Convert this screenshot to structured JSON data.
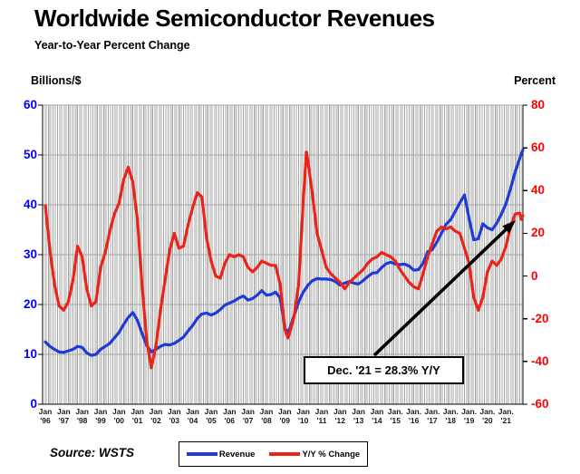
{
  "header": {
    "title": "Worldwide Semiconductor Revenues",
    "subtitle": "Year-to-Year Percent Change"
  },
  "axes": {
    "left_title": "Billions/$",
    "right_title": "Percent",
    "left_tick_labels": [
      "60",
      "50",
      "40",
      "30",
      "20",
      "10",
      "0"
    ],
    "left_tick_values": [
      60,
      50,
      40,
      30,
      20,
      10,
      0
    ],
    "right_tick_labels": [
      "80",
      "60",
      "40",
      "20",
      "0",
      "-20",
      "-40",
      "-60"
    ],
    "right_tick_values": [
      80,
      60,
      40,
      20,
      0,
      -20,
      -40,
      -60
    ],
    "x_labels": [
      {
        "line1": "Jan",
        "line2": "'96"
      },
      {
        "line1": "Jan",
        "line2": "'97"
      },
      {
        "line1": "Jan",
        "line2": "'98"
      },
      {
        "line1": "Jan",
        "line2": "'99"
      },
      {
        "line1": "Jan",
        "line2": "'00"
      },
      {
        "line1": "Jan",
        "line2": "'01"
      },
      {
        "line1": "Jan",
        "line2": "'02"
      },
      {
        "line1": "Jan",
        "line2": "'03"
      },
      {
        "line1": "Jan",
        "line2": "'04"
      },
      {
        "line1": "Jan",
        "line2": "'05"
      },
      {
        "line1": "Jan",
        "line2": "'06"
      },
      {
        "line1": "Jan",
        "line2": "'07"
      },
      {
        "line1": "Jan",
        "line2": "'08"
      },
      {
        "line1": "Jan",
        "line2": "'09"
      },
      {
        "line1": "Jan",
        "line2": "'10"
      },
      {
        "line1": "Jan",
        "line2": "'11"
      },
      {
        "line1": "Jan",
        "line2": "'12"
      },
      {
        "line1": "Jan",
        "line2": "'13"
      },
      {
        "line1": "Jan",
        "line2": "'14"
      },
      {
        "line1": "Jan.",
        "line2": "'15"
      },
      {
        "line1": "Jan.",
        "line2": "'16"
      },
      {
        "line1": "Jan.",
        "line2": "'17"
      },
      {
        "line1": "Jan.",
        "line2": "'18"
      },
      {
        "line1": "Jan.",
        "line2": "'19"
      },
      {
        "line1": "Jan.",
        "line2": "'20"
      },
      {
        "line1": "Jan.",
        "line2": "'21"
      }
    ]
  },
  "legend": {
    "items": [
      {
        "label": "Revenue",
        "color": "#1f3ad6"
      },
      {
        "label": "Y/Y % Change",
        "color": "#ea2418"
      }
    ],
    "position": "bottom-center"
  },
  "annotation": {
    "text": "Dec. '21 = 28.3% Y/Y"
  },
  "source": {
    "text": "Source: WSTS"
  },
  "colors": {
    "revenue_line": "#1f3ad6",
    "yoy_line": "#ea2418",
    "left_axis_label": "#0000ff",
    "right_axis_label": "#ff0000",
    "gridline": "#a6a6a6",
    "spine": "#000000",
    "title_text": "#000000",
    "x_label_text": "#1a1a1a"
  },
  "chart_data": {
    "type": "line",
    "title": "Worldwide Semiconductor Revenues",
    "subtitle": "Year-to-Year Percent Change",
    "source": "Source: WSTS",
    "annotation": {
      "text": "Dec. '21 = 28.3% Y/Y",
      "points_to": "final value of Y/Y % Change line (Dec 2021)"
    },
    "left_axis": {
      "title": "Billions/$",
      "range": [
        0,
        60
      ],
      "gridline_step": 10,
      "units": "US$ billions per month (3-month average)"
    },
    "right_axis": {
      "title": "Percent",
      "range": [
        -60,
        80
      ],
      "tick_step": 20,
      "units": "year-to-year percent change"
    },
    "x_axis": {
      "range": [
        1996.0,
        2021.917
      ],
      "tick_labels": "Jan of each year 1996-2021",
      "minor_gridlines": "monthly"
    },
    "legend_position": "bottom-center",
    "x": [
      1996.0,
      1996.25,
      1996.5,
      1996.75,
      1997.0,
      1997.25,
      1997.5,
      1997.75,
      1998.0,
      1998.25,
      1998.5,
      1998.75,
      1999.0,
      1999.25,
      1999.5,
      1999.75,
      2000.0,
      2000.25,
      2000.5,
      2000.75,
      2001.0,
      2001.25,
      2001.5,
      2001.75,
      2002.0,
      2002.25,
      2002.5,
      2002.75,
      2003.0,
      2003.25,
      2003.5,
      2003.75,
      2004.0,
      2004.25,
      2004.5,
      2004.75,
      2005.0,
      2005.25,
      2005.5,
      2005.75,
      2006.0,
      2006.25,
      2006.5,
      2006.75,
      2007.0,
      2007.25,
      2007.5,
      2007.75,
      2008.0,
      2008.25,
      2008.5,
      2008.75,
      2008.92,
      2009.0,
      2009.17,
      2009.25,
      2009.5,
      2009.75,
      2010.0,
      2010.17,
      2010.25,
      2010.5,
      2010.75,
      2011.0,
      2011.25,
      2011.5,
      2011.75,
      2012.0,
      2012.25,
      2012.5,
      2012.75,
      2013.0,
      2013.25,
      2013.5,
      2013.75,
      2014.0,
      2014.25,
      2014.5,
      2014.75,
      2015.0,
      2015.25,
      2015.5,
      2015.75,
      2016.0,
      2016.25,
      2016.5,
      2016.75,
      2017.0,
      2017.25,
      2017.5,
      2017.75,
      2018.0,
      2018.25,
      2018.5,
      2018.75,
      2019.0,
      2019.25,
      2019.5,
      2019.75,
      2020.0,
      2020.25,
      2020.5,
      2020.75,
      2021.0,
      2021.25,
      2021.5,
      2021.75,
      2021.83,
      2021.92
    ],
    "series": [
      {
        "name": "Revenue",
        "axis": "left",
        "color": "#1f3ad6",
        "values": [
          12.5,
          11.6,
          11.0,
          10.5,
          10.4,
          10.7,
          11.0,
          11.6,
          11.4,
          10.3,
          9.8,
          10.0,
          11.0,
          11.6,
          12.2,
          13.3,
          14.4,
          16.0,
          17.4,
          18.4,
          16.8,
          14.2,
          11.8,
          10.5,
          11.0,
          11.6,
          12.0,
          11.9,
          12.2,
          12.8,
          13.5,
          14.7,
          15.8,
          17.2,
          18.1,
          18.3,
          17.9,
          18.3,
          19.0,
          19.9,
          20.3,
          20.7,
          21.3,
          21.7,
          20.9,
          21.2,
          21.9,
          22.8,
          21.9,
          22.0,
          22.5,
          21.3,
          17.3,
          15.2,
          14.5,
          15.0,
          17.8,
          20.5,
          22.5,
          23.4,
          23.9,
          24.8,
          25.2,
          25.1,
          25.1,
          25.0,
          24.6,
          23.9,
          24.3,
          24.6,
          24.3,
          24.1,
          24.8,
          25.6,
          26.3,
          26.4,
          27.4,
          28.2,
          28.5,
          28.1,
          28.0,
          28.1,
          27.7,
          26.9,
          27.0,
          28.3,
          30.6,
          31.0,
          32.5,
          34.3,
          36.1,
          37.0,
          38.7,
          40.4,
          42.0,
          37.3,
          33.0,
          33.2,
          36.2,
          35.4,
          35.0,
          36.3,
          38.1,
          40.2,
          43.2,
          46.6,
          49.3,
          50.2,
          51.0
        ]
      },
      {
        "name": "Y/Y % Change",
        "axis": "right",
        "color": "#ea2418",
        "values": [
          33,
          12,
          -4,
          -14,
          -16,
          -12,
          -2,
          14,
          9,
          -6,
          -14,
          -12,
          4,
          11,
          21,
          29,
          34,
          45,
          51,
          44,
          26,
          -4,
          -30,
          -43,
          -33,
          -16,
          -2,
          12,
          20,
          13,
          14,
          24,
          32,
          39,
          37,
          18,
          7,
          0,
          -1,
          6,
          10,
          9,
          10,
          9,
          4,
          2,
          4,
          7,
          6,
          5,
          5,
          -4,
          -18,
          -25,
          -29,
          -27,
          -19,
          -4,
          35,
          58,
          54,
          38,
          20,
          12,
          4,
          1,
          -1,
          -3,
          -6,
          -3,
          -1,
          1,
          3,
          6,
          8,
          9,
          11,
          10,
          9,
          7,
          3,
          0,
          -3,
          -5,
          -6,
          1,
          9,
          15,
          21,
          23,
          22,
          23,
          21,
          20,
          13,
          6,
          -10,
          -16,
          -10,
          2,
          7,
          5,
          8,
          14,
          23,
          29,
          29.5,
          26.5,
          28.3
        ]
      }
    ]
  }
}
